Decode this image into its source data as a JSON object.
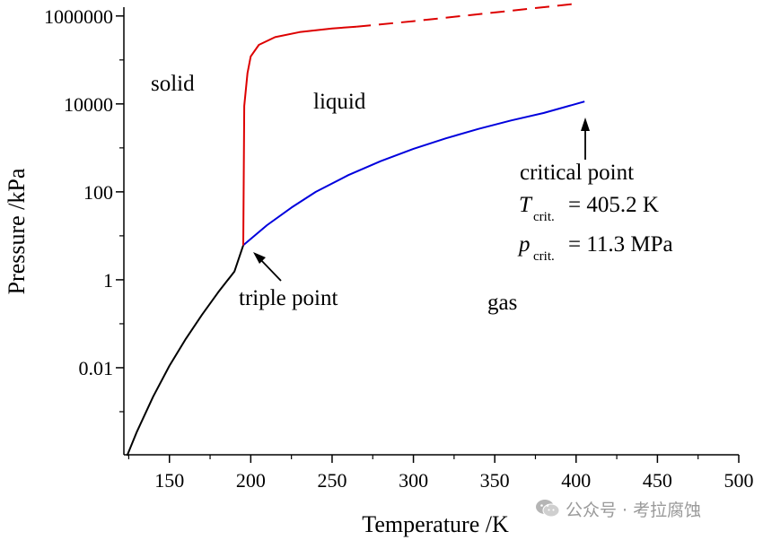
{
  "chart_data": {
    "type": "line",
    "title": "",
    "xlabel": "Temperature /K",
    "ylabel": "Pressure /kPa",
    "xlim": [
      122,
      500
    ],
    "ylim_log10": [
      -3.98,
      6.2
    ],
    "y_scale": "log",
    "grid": false,
    "x_ticks": [
      150,
      200,
      250,
      300,
      350,
      400,
      450,
      500
    ],
    "y_ticks": [
      {
        "value": 0.01,
        "label": "0.01"
      },
      {
        "value": 1,
        "label": "1"
      },
      {
        "value": 100,
        "label": "100"
      },
      {
        "value": 10000,
        "label": "10000"
      },
      {
        "value": 1000000,
        "label": "1000000"
      }
    ],
    "series": [
      {
        "color": "#000000",
        "style": "solid",
        "x": [
          124.0,
          130,
          140,
          150,
          160,
          170,
          180,
          190,
          195.4
        ],
        "y": [
          0.0001,
          0.00035,
          0.0022,
          0.011,
          0.045,
          0.16,
          0.52,
          1.55,
          6.1
        ]
      },
      {
        "color": "#0000dd",
        "style": "solid",
        "x": [
          195.4,
          210,
          225,
          240,
          260,
          280,
          300,
          320,
          340,
          360,
          380,
          405.2
        ],
        "y": [
          6.1,
          17.5,
          44,
          100,
          240,
          500,
          950,
          1650,
          2700,
          4200,
          6200,
          11300
        ]
      },
      {
        "color": "#dd0000",
        "style": "solid",
        "x": [
          195.4,
          196,
          198,
          200,
          205,
          215,
          230,
          250,
          265
        ],
        "y": [
          6.1,
          9000,
          50000,
          120000,
          220000,
          330000,
          430000,
          520000,
          570000
        ]
      },
      {
        "color": "#dd0000",
        "style": "dashed",
        "x": [
          265,
          300,
          350,
          400
        ],
        "y": [
          570000,
          760000,
          1200000,
          1900000
        ]
      }
    ],
    "regions": {
      "solid": "solid",
      "liquid": "liquid",
      "gas": "gas"
    },
    "annotations": {
      "triple_point": {
        "text": "triple point",
        "x": 195.4,
        "y": 6.1
      },
      "critical_point": {
        "text": "critical point",
        "x": 405.2,
        "y": 11300,
        "t_symbol": "T",
        "t_subscript": "crit.",
        "t_value": "= 405.2 K",
        "p_symbol": "p",
        "p_subscript": "crit.",
        "p_value": "= 11.3 MPa"
      }
    }
  },
  "watermark": {
    "text": "公众号 · 考拉腐蚀",
    "icon": "wechat-icon"
  }
}
